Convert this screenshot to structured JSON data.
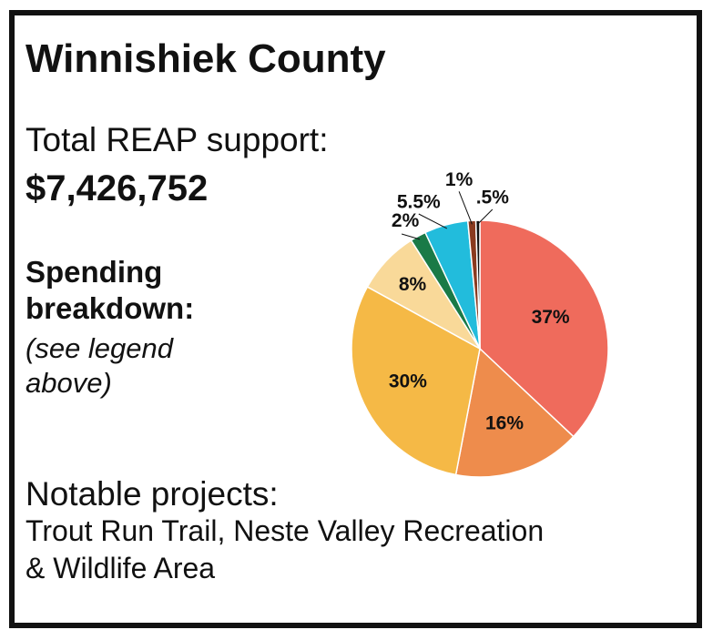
{
  "county": {
    "title": "Winnishiek County",
    "support_label": "Total REAP support:",
    "support_value": "$7,426,752",
    "spending_heading_line1": "Spending",
    "spending_heading_line2": "breakdown:",
    "spending_note_line1": "(see legend",
    "spending_note_line2": "above)",
    "projects_heading": "Notable projects:",
    "projects_line1": "Trout Run Trail, Neste Valley Recreation",
    "projects_line2": "& Wildlife Area"
  },
  "chart_data": {
    "type": "pie",
    "title": "",
    "slices": [
      {
        "label": "37%",
        "value": 37,
        "color": "#ef6b5c"
      },
      {
        "label": "16%",
        "value": 16,
        "color": "#ee8c4c"
      },
      {
        "label": "30%",
        "value": 30,
        "color": "#f5b946"
      },
      {
        "label": "8%",
        "value": 8,
        "color": "#f9d999"
      },
      {
        "label": "2%",
        "value": 2,
        "color": "#1a7a47"
      },
      {
        "label": "5.5%",
        "value": 5.5,
        "color": "#22bcdc"
      },
      {
        "label": "1%",
        "value": 1,
        "color": "#8a3a1f"
      },
      {
        "label": ".5%",
        "value": 0.5,
        "color": "#111111"
      }
    ]
  }
}
